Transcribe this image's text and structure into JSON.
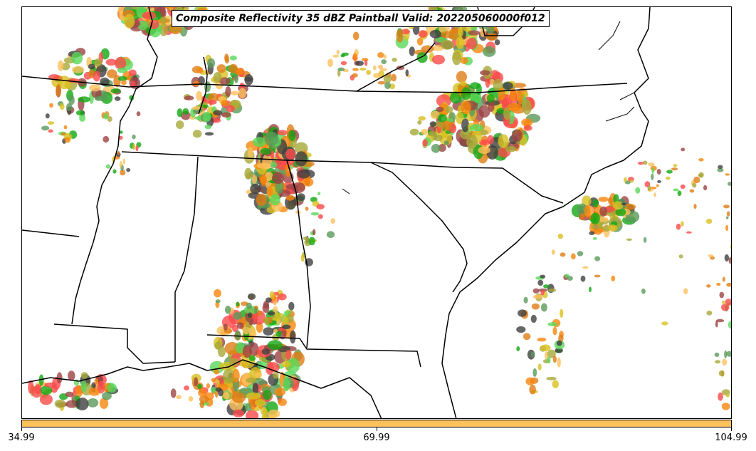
{
  "title": "Composite Reflectivity 35 dBZ Paintball Valid: 202205060000f012",
  "colorbar": {
    "color": "#fec15c",
    "ticks": [
      "34.99",
      "69.99",
      "104.99"
    ]
  },
  "paintball_colors": [
    "#fb4a4a",
    "#f8860c",
    "#e07d14",
    "#a8a838",
    "#9c4444",
    "#5ad85a",
    "#13a813",
    "#5a9a5a",
    "#404040",
    "#fec15c",
    "#d8c020"
  ]
}
